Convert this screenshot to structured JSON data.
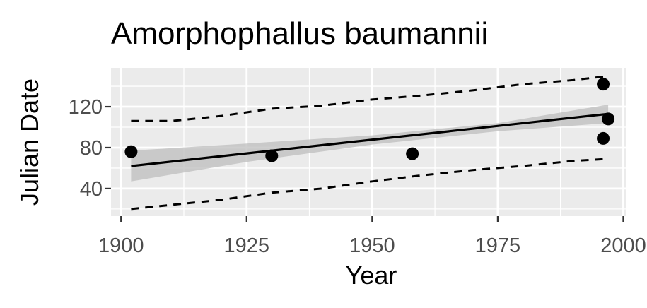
{
  "chart_data": {
    "type": "scatter",
    "title": "Amorphophallus baumannii",
    "xlabel": "Year",
    "ylabel": "Julian Date",
    "xlim": [
      1898,
      2000.5
    ],
    "ylim": [
      13,
      158
    ],
    "x_ticks": [
      1900,
      1925,
      1950,
      1975,
      2000
    ],
    "y_ticks": [
      40,
      80,
      120
    ],
    "grid": true,
    "legend": "none",
    "points": [
      {
        "x": 1902,
        "y": 76
      },
      {
        "x": 1930,
        "y": 72
      },
      {
        "x": 1958,
        "y": 74
      },
      {
        "x": 1996,
        "y": 142
      },
      {
        "x": 1996,
        "y": 89
      },
      {
        "x": 1997,
        "y": 108
      }
    ],
    "fit_line": {
      "x": [
        1902,
        1997
      ],
      "y": [
        62,
        113
      ]
    },
    "confidence_band": {
      "x": [
        1902,
        1925,
        1950,
        1975,
        1997
      ],
      "lower": [
        47,
        66,
        83,
        96,
        104
      ],
      "upper": [
        77,
        84,
        92,
        104,
        122
      ]
    },
    "prediction_interval": {
      "x": [
        1902,
        1910,
        1920,
        1930,
        1940,
        1950,
        1960,
        1970,
        1980,
        1990,
        1997
      ],
      "upper": [
        106,
        106,
        111,
        118,
        121,
        127,
        131,
        136,
        142,
        146,
        150
      ],
      "lower": [
        20,
        24,
        29,
        36,
        40,
        47,
        53,
        58,
        62,
        67,
        69
      ]
    },
    "colors": {
      "panel": "#ebebeb",
      "grid": "#ffffff",
      "band": "#bebebe",
      "line": "#000000",
      "point": "#000000"
    }
  }
}
